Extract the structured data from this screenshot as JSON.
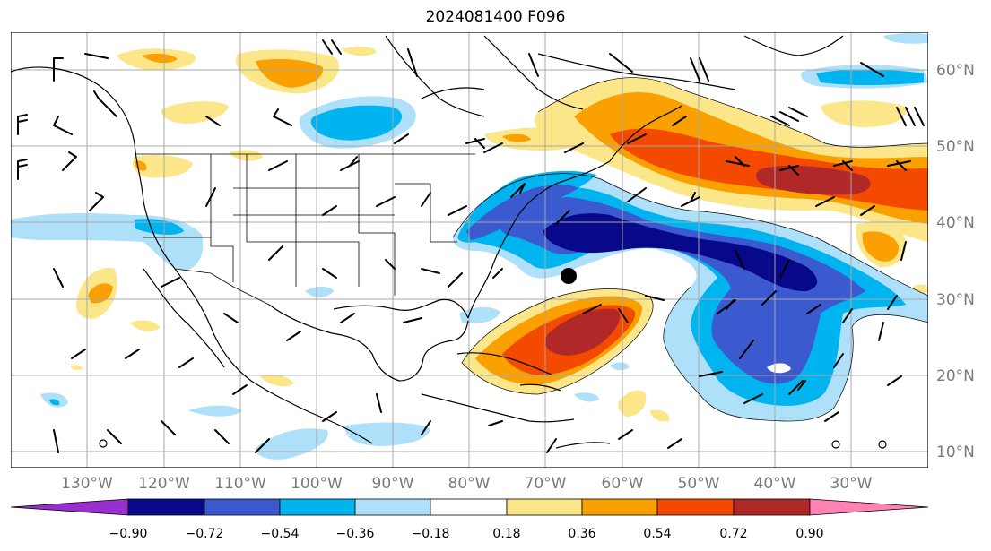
{
  "title": "2024081400 F096",
  "map": {
    "lon_labels": [
      "130°W",
      "120°W",
      "110°W",
      "100°W",
      "90°W",
      "80°W",
      "70°W",
      "60°W",
      "50°W",
      "40°W",
      "30°W"
    ],
    "lat_labels": [
      "60°N",
      "50°N",
      "40°N",
      "30°N",
      "20°N",
      "10°N"
    ]
  },
  "colorbar": {
    "ticks": [
      "−0.90",
      "−0.72",
      "−0.54",
      "−0.36",
      "−0.18",
      "0.18",
      "0.36",
      "0.54",
      "0.72",
      "0.90"
    ],
    "colors": [
      "#9a2fd0",
      "#08088a",
      "#3c5acf",
      "#00b4f0",
      "#aee0fa",
      "#ffffff",
      "#fbe68a",
      "#faa000",
      "#f44a00",
      "#b02828",
      "#ff82b4"
    ]
  }
}
